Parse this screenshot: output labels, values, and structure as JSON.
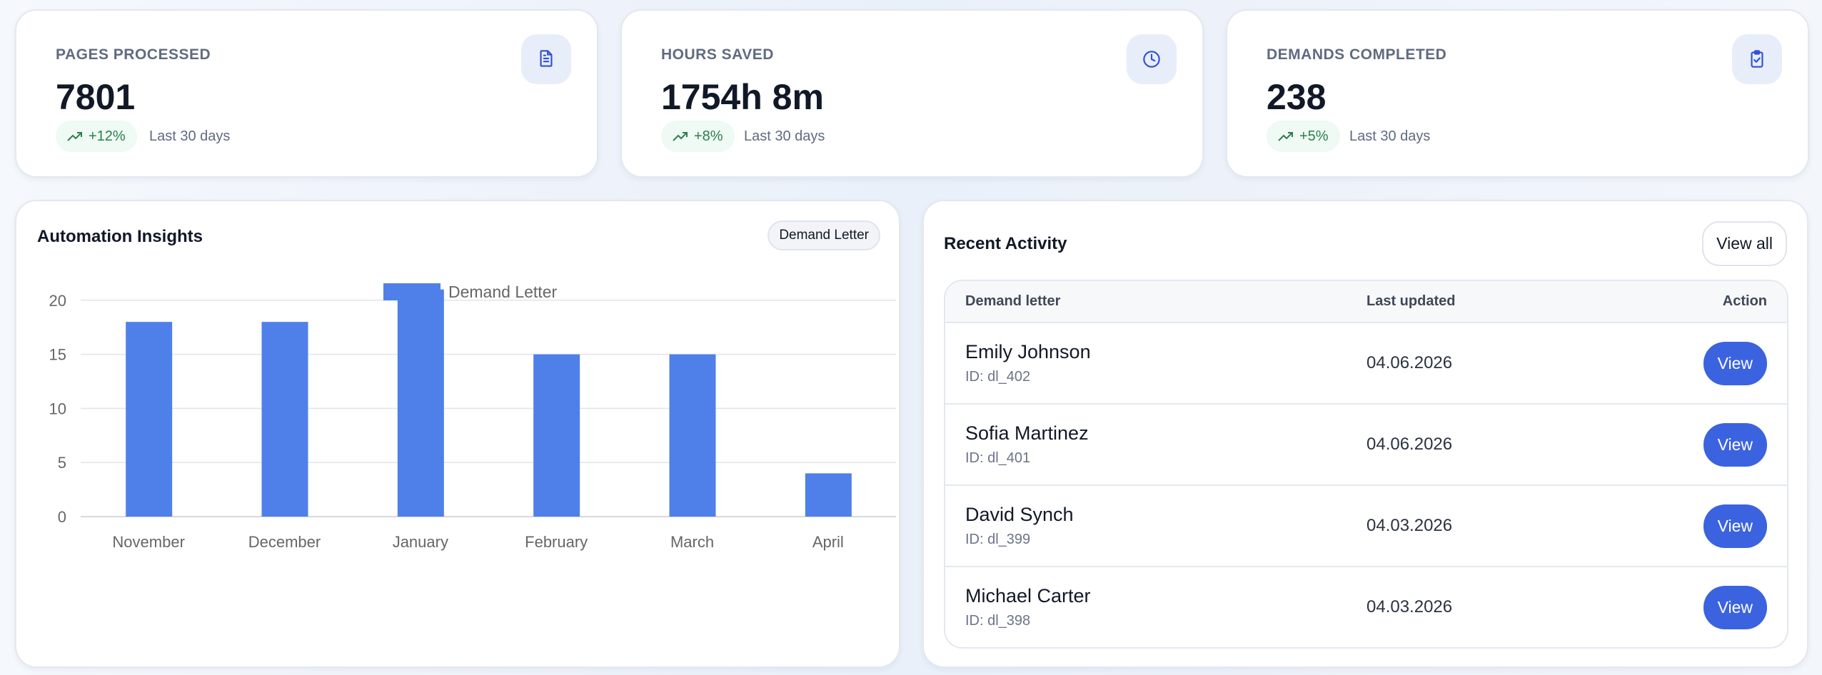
{
  "stats": [
    {
      "label": "PAGES PROCESSED",
      "value": "7801",
      "change": "+12%",
      "period": "Last 30 days",
      "icon": "document-icon"
    },
    {
      "label": "HOURS SAVED",
      "value": "1754h 8m",
      "change": "+8%",
      "period": "Last 30 days",
      "icon": "clock-icon"
    },
    {
      "label": "DEMANDS COMPLETED",
      "value": "238",
      "change": "+5%",
      "period": "Last 30 days",
      "icon": "clipboard-check-icon"
    }
  ],
  "insights": {
    "title": "Automation Insights",
    "filter": "Demand Letter"
  },
  "chart_data": {
    "type": "bar",
    "categories": [
      "November",
      "December",
      "January",
      "February",
      "March",
      "April"
    ],
    "series": [
      {
        "name": "Demand Letter",
        "values": [
          18,
          18,
          21,
          15,
          15,
          4
        ],
        "color": "#4f80ea"
      }
    ],
    "ylim": [
      0,
      25
    ],
    "yticks": [
      0,
      5,
      10,
      15,
      20,
      25
    ],
    "legend": "top-center",
    "grid": true
  },
  "activity": {
    "title": "Recent Activity",
    "view_all": "View all",
    "headers": [
      "Demand letter",
      "Last updated",
      "Action"
    ],
    "rows": [
      {
        "name": "Emily Johnson",
        "id": "ID: dl_402",
        "date": "04.06.2026",
        "action": "View"
      },
      {
        "name": "Sofia Martinez",
        "id": "ID: dl_401",
        "date": "04.06.2026",
        "action": "View"
      },
      {
        "name": "David Synch",
        "id": "ID: dl_399",
        "date": "04.03.2026",
        "action": "View"
      },
      {
        "name": "Michael Carter",
        "id": "ID: dl_398",
        "date": "04.03.2026",
        "action": "View"
      }
    ]
  }
}
